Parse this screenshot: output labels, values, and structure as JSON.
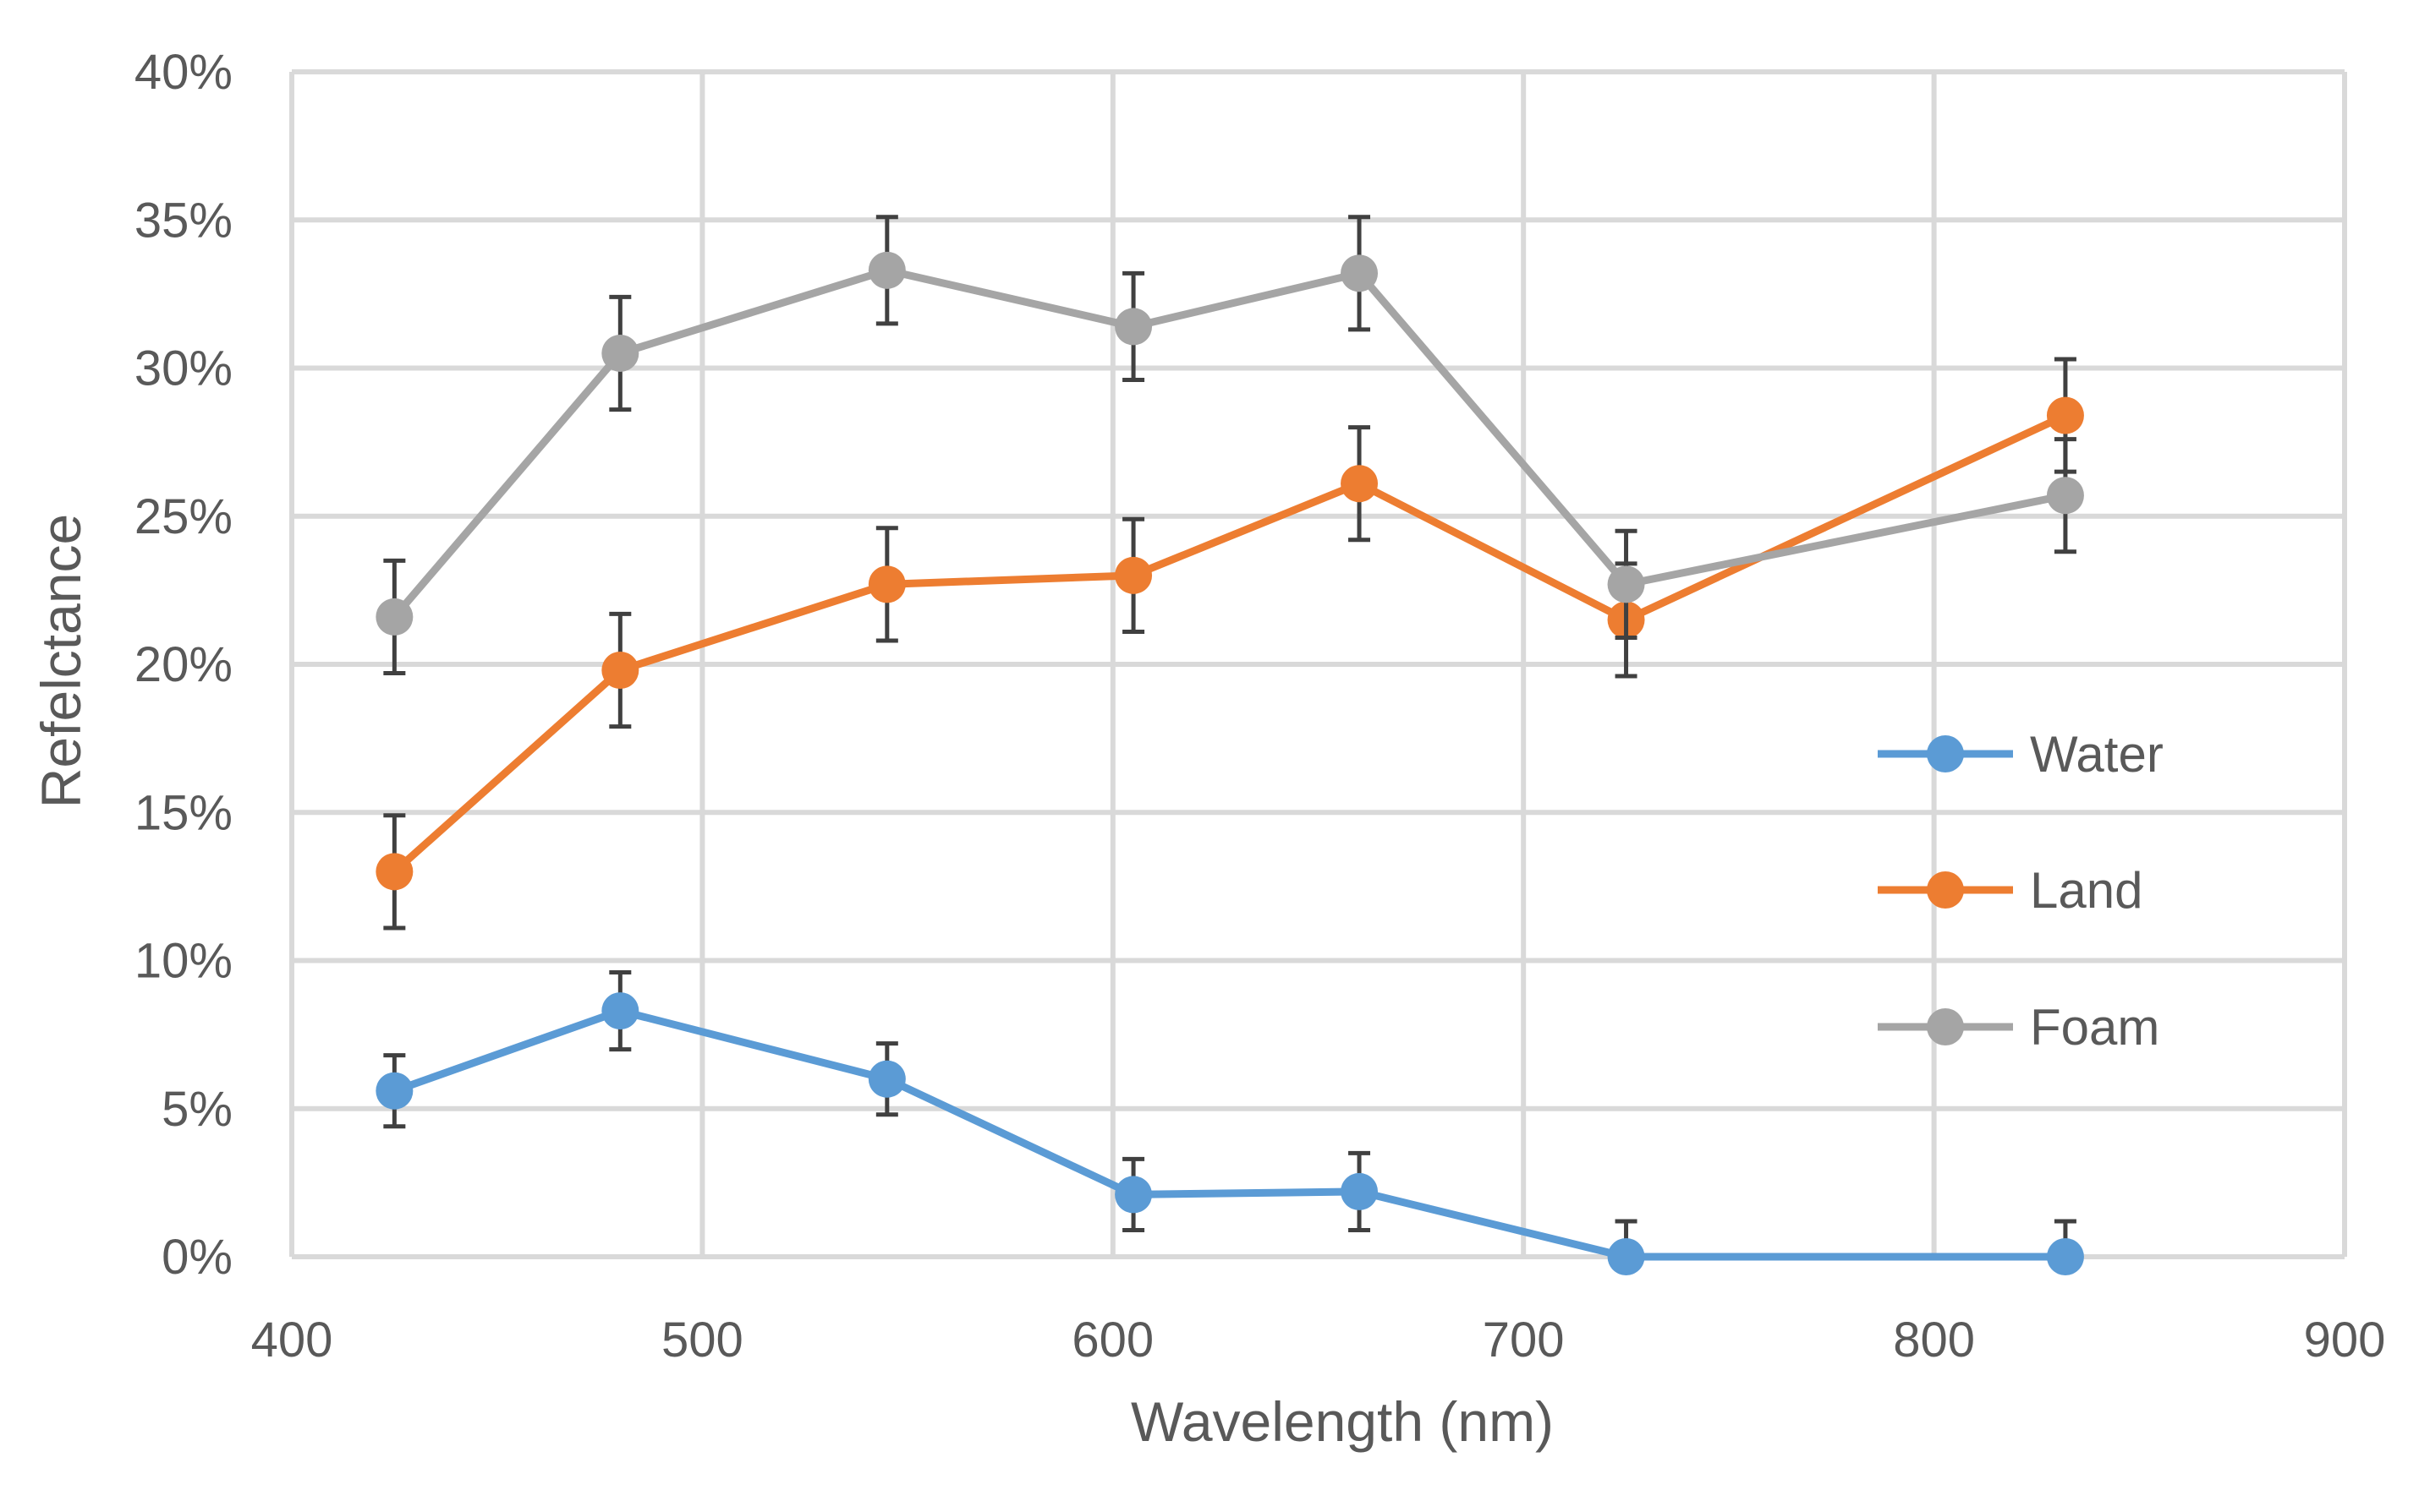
{
  "chart_data": {
    "type": "line",
    "title": "",
    "xlabel": "Wavelength (nm)",
    "ylabel": "Refelctance",
    "xlim": [
      400,
      900
    ],
    "ylim": [
      0,
      40
    ],
    "x_ticks": [
      400,
      500,
      600,
      700,
      800,
      900
    ],
    "y_ticks": [
      0,
      5,
      10,
      15,
      20,
      25,
      30,
      35,
      40
    ],
    "x_tick_labels": [
      "400",
      "500",
      "600",
      "700",
      "800",
      "900"
    ],
    "y_tick_labels": [
      "0%",
      "5%",
      "10%",
      "15%",
      "20%",
      "25%",
      "30%",
      "35%",
      "40%"
    ],
    "grid": true,
    "legend_position": "right",
    "x": [
      425,
      480,
      545,
      605,
      660,
      725,
      832
    ],
    "series": [
      {
        "name": "Water",
        "color": "#5b9bd5",
        "values": [
          5.6,
          8.3,
          6.0,
          2.1,
          2.2,
          0.0,
          0.0
        ],
        "error": [
          1.2,
          1.3,
          1.2,
          1.2,
          1.3,
          1.2,
          1.2
        ]
      },
      {
        "name": "Land",
        "color": "#ed7d31",
        "values": [
          13.0,
          19.8,
          22.7,
          23.0,
          26.1,
          21.5,
          28.4
        ],
        "error": [
          1.9,
          1.9,
          1.9,
          1.9,
          1.9,
          1.9,
          1.9
        ]
      },
      {
        "name": "Foam",
        "color": "#a5a5a5",
        "values": [
          21.6,
          30.5,
          33.3,
          31.4,
          33.2,
          22.7,
          25.7
        ],
        "error": [
          1.9,
          1.9,
          1.8,
          1.8,
          1.9,
          1.8,
          1.9
        ]
      }
    ],
    "error_bar_color": "#404040"
  }
}
